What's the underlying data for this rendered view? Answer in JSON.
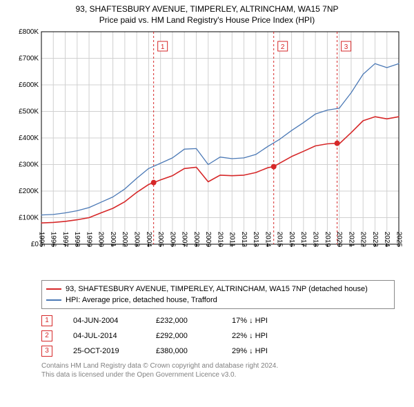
{
  "title_line1": "93, SHAFTESBURY AVENUE, TIMPERLEY, ALTRINCHAM, WA15 7NP",
  "title_line2": "Price paid vs. HM Land Registry's House Price Index (HPI)",
  "chart": {
    "type": "line",
    "background_color": "#ffffff",
    "grid_color": "#d0d0d0",
    "axis_color": "#000000",
    "xlim": [
      1995,
      2025
    ],
    "xtick_step": 1,
    "xticks": [
      1995,
      1996,
      1997,
      1998,
      1999,
      2000,
      2001,
      2002,
      2003,
      2004,
      2005,
      2006,
      2007,
      2008,
      2009,
      2010,
      2011,
      2012,
      2013,
      2014,
      2015,
      2016,
      2017,
      2018,
      2019,
      2020,
      2021,
      2022,
      2023,
      2024,
      2025
    ],
    "ylim": [
      0,
      800000
    ],
    "ytick_step": 100000,
    "ytick_labels": [
      "£0",
      "£100K",
      "£200K",
      "£300K",
      "£400K",
      "£500K",
      "£600K",
      "£700K",
      "£800K"
    ],
    "x_label_fontsize": 10,
    "y_label_fontsize": 10,
    "xtick_rotation": 90,
    "series": [
      {
        "name": "property",
        "label": "93, SHAFTESBURY AVENUE, TIMPERLEY, ALTRINCHAM, WA15 7NP (detached house)",
        "color": "#d62728",
        "line_width": 1.6,
        "points": [
          [
            1995,
            80000
          ],
          [
            1996,
            82000
          ],
          [
            1997,
            86000
          ],
          [
            1998,
            92000
          ],
          [
            1999,
            100000
          ],
          [
            2000,
            118000
          ],
          [
            2001,
            135000
          ],
          [
            2002,
            160000
          ],
          [
            2003,
            195000
          ],
          [
            2004,
            225000
          ],
          [
            2004.42,
            232000
          ],
          [
            2005,
            242000
          ],
          [
            2006,
            258000
          ],
          [
            2007,
            285000
          ],
          [
            2008,
            290000
          ],
          [
            2009,
            235000
          ],
          [
            2010,
            260000
          ],
          [
            2011,
            258000
          ],
          [
            2012,
            260000
          ],
          [
            2013,
            270000
          ],
          [
            2014,
            288000
          ],
          [
            2014.5,
            292000
          ],
          [
            2015,
            305000
          ],
          [
            2016,
            330000
          ],
          [
            2017,
            350000
          ],
          [
            2018,
            370000
          ],
          [
            2019,
            378000
          ],
          [
            2019.82,
            380000
          ],
          [
            2020,
            378000
          ],
          [
            2021,
            420000
          ],
          [
            2022,
            465000
          ],
          [
            2023,
            480000
          ],
          [
            2024,
            472000
          ],
          [
            2025,
            480000
          ]
        ]
      },
      {
        "name": "hpi",
        "label": "HPI: Average price, detached house, Trafford",
        "color": "#4a78b5",
        "line_width": 1.3,
        "points": [
          [
            1995,
            110000
          ],
          [
            1996,
            112000
          ],
          [
            1997,
            118000
          ],
          [
            1998,
            126000
          ],
          [
            1999,
            138000
          ],
          [
            2000,
            158000
          ],
          [
            2001,
            178000
          ],
          [
            2002,
            208000
          ],
          [
            2003,
            248000
          ],
          [
            2004,
            285000
          ],
          [
            2005,
            305000
          ],
          [
            2006,
            325000
          ],
          [
            2007,
            358000
          ],
          [
            2008,
            360000
          ],
          [
            2009,
            300000
          ],
          [
            2010,
            328000
          ],
          [
            2011,
            322000
          ],
          [
            2012,
            325000
          ],
          [
            2013,
            338000
          ],
          [
            2014,
            368000
          ],
          [
            2015,
            395000
          ],
          [
            2016,
            428000
          ],
          [
            2017,
            458000
          ],
          [
            2018,
            490000
          ],
          [
            2019,
            505000
          ],
          [
            2020,
            512000
          ],
          [
            2021,
            570000
          ],
          [
            2022,
            640000
          ],
          [
            2023,
            680000
          ],
          [
            2024,
            665000
          ],
          [
            2025,
            680000
          ]
        ]
      }
    ],
    "sale_markers": [
      {
        "n": 1,
        "x": 2004.42,
        "y": 232000,
        "date": "04-JUN-2004",
        "price": "£232,000",
        "delta": "17% ↓ HPI"
      },
      {
        "n": 2,
        "x": 2014.5,
        "y": 292000,
        "date": "04-JUL-2014",
        "price": "£292,000",
        "delta": "22% ↓ HPI"
      },
      {
        "n": 3,
        "x": 2019.82,
        "y": 380000,
        "date": "25-OCT-2019",
        "price": "£380,000",
        "delta": "29% ↓ HPI"
      }
    ],
    "marker_line_color": "#d62728",
    "marker_dot_color": "#d62728",
    "marker_box_border": "#d62728",
    "marker_box_text": "#d62728"
  },
  "legend": {
    "border_color": "#888888"
  },
  "footer_line1": "Contains HM Land Registry data © Crown copyright and database right 2024.",
  "footer_line2": "This data is licensed under the Open Government Licence v3.0."
}
